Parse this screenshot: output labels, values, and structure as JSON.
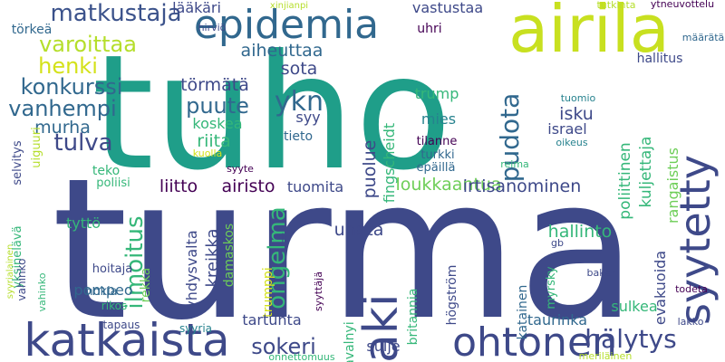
{
  "background": "#ffffff",
  "palette": {
    "purple": "#440154",
    "indigo": "#482878",
    "blue": "#3e4989",
    "steel": "#31688e",
    "teal": "#26828e",
    "sea": "#1f9e89",
    "green": "#35b779",
    "lime": "#6ece58",
    "yellowgreen": "#b5de2b",
    "yellow": "#d4e21a"
  },
  "words": [
    {
      "text": "tuho",
      "color": "#1f9e89"
    },
    {
      "text": "turma",
      "color": "#3e4989"
    },
    {
      "text": "airila",
      "color": "#c8e020"
    },
    {
      "text": "epidemia",
      "color": "#31688e"
    },
    {
      "text": "katkaista",
      "color": "#3e4989"
    },
    {
      "text": "ohtonen",
      "color": "#3e4989"
    },
    {
      "text": "syytetty",
      "color": "#3e4989"
    },
    {
      "text": "laki",
      "color": "#3e4989"
    },
    {
      "text": "matkustaja",
      "color": "#3b528b"
    },
    {
      "text": "varoittaa",
      "color": "#b5de2b"
    },
    {
      "text": "henki",
      "color": "#d4e21a"
    },
    {
      "text": "konkurssi",
      "color": "#31688e"
    },
    {
      "text": "vanhempi",
      "color": "#31688e"
    },
    {
      "text": "tulva",
      "color": "#3e4989"
    },
    {
      "text": "murha",
      "color": "#31688e"
    },
    {
      "text": "puute",
      "color": "#31688e"
    },
    {
      "text": "ykn",
      "color": "#31688e"
    },
    {
      "text": "ilmoitus",
      "color": "#35b779"
    },
    {
      "text": "ongelma",
      "color": "#35b779"
    },
    {
      "text": "pudota",
      "color": "#31688e"
    },
    {
      "text": "hälytys",
      "color": "#3e4989"
    },
    {
      "text": "sokeri",
      "color": "#3e4989"
    },
    {
      "text": "lääkäri",
      "color": "#3e4989"
    },
    {
      "text": "törmätä",
      "color": "#3e4989"
    },
    {
      "text": "aiheuttaa",
      "color": "#31688e"
    },
    {
      "text": "sota",
      "color": "#3e4989"
    },
    {
      "text": "koskea",
      "color": "#35b779"
    },
    {
      "text": "riita",
      "color": "#35b779"
    },
    {
      "text": "syy",
      "color": "#3e4989"
    },
    {
      "text": "puolue",
      "color": "#3e4989"
    },
    {
      "text": "fingscheidt",
      "color": "#35b779"
    },
    {
      "text": "loukkaantua",
      "color": "#6ece58"
    },
    {
      "text": "liitto",
      "color": "#440154"
    },
    {
      "text": "airisto",
      "color": "#440154"
    },
    {
      "text": "tuomita",
      "color": "#3e4989"
    },
    {
      "text": "irtisanominen",
      "color": "#3e4989"
    },
    {
      "text": "vastustaa",
      "color": "#3e4989"
    },
    {
      "text": "uhri",
      "color": "#440154"
    },
    {
      "text": "tutkinta",
      "color": "#b5de2b"
    },
    {
      "text": "ytneuvottelu",
      "color": "#440154"
    },
    {
      "text": "määrätä",
      "color": "#31688e"
    },
    {
      "text": "xinjianpi",
      "color": "#b5de2b"
    },
    {
      "text": "hirviö",
      "color": "#3e4989"
    },
    {
      "text": "törkeä",
      "color": "#31688e"
    },
    {
      "text": "hallitus",
      "color": "#3e4989"
    },
    {
      "text": "poliittinen",
      "color": "#35b779"
    },
    {
      "text": "kuljettaja",
      "color": "#35b779"
    },
    {
      "text": "rangaistus",
      "color": "#6ece58"
    },
    {
      "text": "isku",
      "color": "#3e4989"
    },
    {
      "text": "israel",
      "color": "#3e4989"
    },
    {
      "text": "tilanne",
      "color": "#440154"
    },
    {
      "text": "turkki",
      "color": "#31688e"
    },
    {
      "text": "epäillä",
      "color": "#31688e"
    },
    {
      "text": "reima",
      "color": "#35b779"
    },
    {
      "text": "tuomio",
      "color": "#26828e"
    },
    {
      "text": "oikeus",
      "color": "#26828e"
    },
    {
      "text": "trump",
      "color": "#35b779"
    },
    {
      "text": "mies",
      "color": "#26828e"
    },
    {
      "text": "tieto",
      "color": "#31688e"
    },
    {
      "text": "kuolla",
      "color": "#d4e21a"
    },
    {
      "text": "syyte",
      "color": "#440154"
    },
    {
      "text": "poliisi",
      "color": "#35b779"
    },
    {
      "text": "teko",
      "color": "#35b779"
    },
    {
      "text": "selvitys",
      "color": "#3e4989"
    },
    {
      "text": "uiguuri",
      "color": "#b5de2b"
    },
    {
      "text": "tyttö",
      "color": "#35b779"
    },
    {
      "text": "yhdysvalta",
      "color": "#3e4989"
    },
    {
      "text": "kreikka",
      "color": "#3e4989"
    },
    {
      "text": "damaskos",
      "color": "#6ece58"
    },
    {
      "text": "rekka",
      "color": "#6ece58"
    },
    {
      "text": "trumppi",
      "color": "#d4e21a"
    },
    {
      "text": "uhata",
      "color": "#3e4989"
    },
    {
      "text": "hallinto",
      "color": "#35b779"
    },
    {
      "text": "evakuoida",
      "color": "#3e4989"
    },
    {
      "text": "jf",
      "color": "#3e4989"
    },
    {
      "text": "hoitaja",
      "color": "#3e4989"
    },
    {
      "text": "nokia",
      "color": "#31688e"
    },
    {
      "text": "pompeo",
      "color": "#31688e"
    },
    {
      "text": "tartunta",
      "color": "#3e4989"
    },
    {
      "text": "britannia",
      "color": "#35b779"
    },
    {
      "text": "högström",
      "color": "#3e4989"
    },
    {
      "text": "katainen",
      "color": "#31688e"
    },
    {
      "text": "myrsky",
      "color": "#35b779"
    },
    {
      "text": "gb",
      "color": "#3e4989"
    },
    {
      "text": "baker",
      "color": "#3e4989"
    },
    {
      "text": "todeta",
      "color": "#440154"
    },
    {
      "text": "sulkea",
      "color": "#35b779"
    },
    {
      "text": "taurinka",
      "color": "#31688e"
    },
    {
      "text": "sulje",
      "color": "#3e4989"
    },
    {
      "text": "navalnyi",
      "color": "#35b779"
    },
    {
      "text": "syyttäjä",
      "color": "#440154"
    },
    {
      "text": "syyria",
      "color": "#26828e"
    },
    {
      "text": "rikos",
      "color": "#35b779"
    },
    {
      "text": "tapaus",
      "color": "#3e4989"
    },
    {
      "text": "onnettomuus",
      "color": "#35b779"
    },
    {
      "text": "meriläinen",
      "color": "#b5de2b"
    },
    {
      "text": "lakko",
      "color": "#3e4989"
    },
    {
      "text": "syyrialainen",
      "color": "#b5de2b"
    },
    {
      "text": "yksinelävä",
      "color": "#35b779"
    },
    {
      "text": "vahinko",
      "color": "#3e4989"
    },
    {
      "text": "vahinko",
      "color": "#35b779"
    }
  ]
}
